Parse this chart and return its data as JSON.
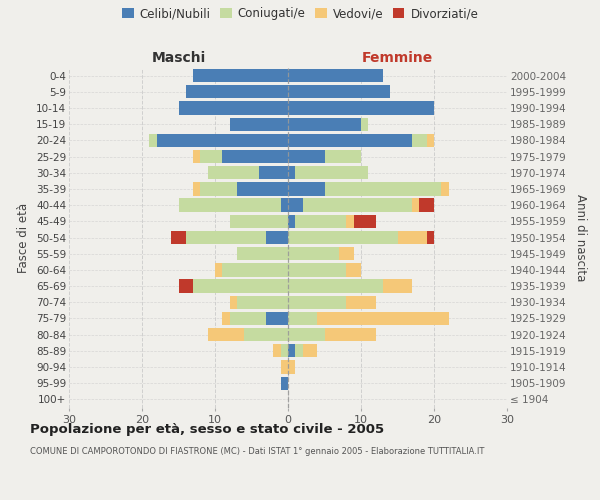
{
  "age_groups": [
    "100+",
    "95-99",
    "90-94",
    "85-89",
    "80-84",
    "75-79",
    "70-74",
    "65-69",
    "60-64",
    "55-59",
    "50-54",
    "45-49",
    "40-44",
    "35-39",
    "30-34",
    "25-29",
    "20-24",
    "15-19",
    "10-14",
    "5-9",
    "0-4"
  ],
  "birth_years": [
    "≤ 1904",
    "1905-1909",
    "1910-1914",
    "1915-1919",
    "1920-1924",
    "1925-1929",
    "1930-1934",
    "1935-1939",
    "1940-1944",
    "1945-1949",
    "1950-1954",
    "1955-1959",
    "1960-1964",
    "1965-1969",
    "1970-1974",
    "1975-1979",
    "1980-1984",
    "1985-1989",
    "1990-1994",
    "1995-1999",
    "2000-2004"
  ],
  "males_celibi": [
    0,
    1,
    0,
    0,
    0,
    3,
    0,
    0,
    0,
    0,
    3,
    0,
    1,
    7,
    4,
    9,
    18,
    8,
    15,
    14,
    13
  ],
  "males_coniugati": [
    0,
    0,
    0,
    1,
    6,
    5,
    7,
    13,
    9,
    7,
    11,
    8,
    14,
    5,
    7,
    3,
    1,
    0,
    0,
    0,
    0
  ],
  "males_vedovi": [
    0,
    0,
    1,
    1,
    5,
    1,
    1,
    0,
    1,
    0,
    0,
    0,
    0,
    1,
    0,
    1,
    0,
    0,
    0,
    0,
    0
  ],
  "males_divorziati": [
    0,
    0,
    0,
    0,
    0,
    0,
    0,
    2,
    0,
    0,
    2,
    0,
    0,
    0,
    0,
    0,
    0,
    0,
    0,
    0,
    0
  ],
  "fem_nubili": [
    0,
    0,
    0,
    1,
    0,
    0,
    0,
    0,
    0,
    0,
    0,
    1,
    2,
    5,
    1,
    5,
    17,
    10,
    20,
    14,
    13
  ],
  "fem_coniugate": [
    0,
    0,
    0,
    1,
    5,
    4,
    8,
    13,
    8,
    7,
    15,
    7,
    15,
    16,
    10,
    5,
    2,
    1,
    0,
    0,
    0
  ],
  "fem_vedove": [
    0,
    0,
    1,
    2,
    7,
    18,
    4,
    4,
    2,
    2,
    4,
    1,
    1,
    1,
    0,
    0,
    1,
    0,
    0,
    0,
    0
  ],
  "fem_divorziate": [
    0,
    0,
    0,
    0,
    0,
    0,
    0,
    0,
    0,
    0,
    1,
    3,
    2,
    0,
    0,
    0,
    0,
    0,
    0,
    0,
    0
  ],
  "color_celibi": "#4a7eb5",
  "color_coniugati": "#c5dba0",
  "color_vedovi": "#f5c878",
  "color_divorziati": "#c0392b",
  "title": "Popolazione per età, sesso e stato civile - 2005",
  "subtitle": "COMUNE DI CAMPOROTONDO DI FIASTRONE (MC) - Dati ISTAT 1° gennaio 2005 - Elaborazione TUTTITALIA.IT",
  "label_maschi": "Maschi",
  "label_femmine": "Femmine",
  "ylabel_left": "Fasce di età",
  "ylabel_right": "Anni di nascita",
  "legend_labels": [
    "Celibi/Nubili",
    "Coniugati/e",
    "Vedovi/e",
    "Divorziati/e"
  ],
  "xlim": 30,
  "bg_color": "#f0efeb"
}
